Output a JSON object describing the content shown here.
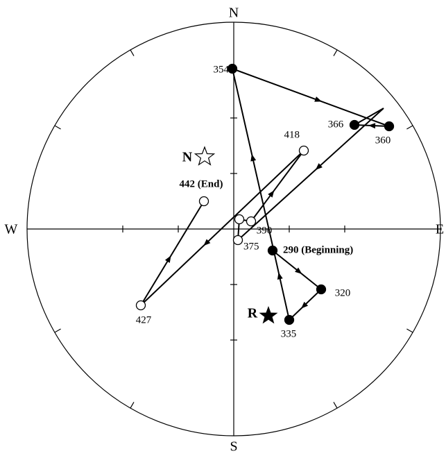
{
  "compass": {
    "north": "N",
    "south": "S",
    "east": "E",
    "west": "W"
  },
  "poles": {
    "normal": "N",
    "reversed": "R"
  },
  "points": [
    {
      "label": "354"
    },
    {
      "label": "360"
    },
    {
      "label": "366"
    },
    {
      "label": "418"
    },
    {
      "label": "442 (End)"
    },
    {
      "label": "390"
    },
    {
      "label": "375"
    },
    {
      "label": "290 (Beginning)"
    },
    {
      "label": "320"
    },
    {
      "label": "335"
    },
    {
      "label": "427"
    }
  ]
}
